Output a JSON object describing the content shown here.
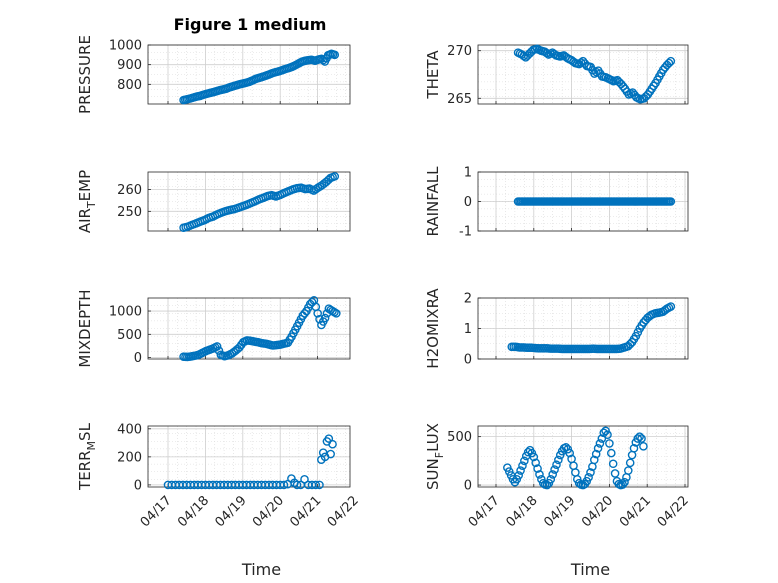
{
  "figure": {
    "title": "Figure 1 medium"
  },
  "colors": {
    "marker": "#0072BD",
    "axis": "#262626",
    "grid": "#d9d9d9",
    "background": "#ffffff"
  },
  "xaxis": {
    "label": "Time",
    "ticks": [
      "04/17",
      "04/18",
      "04/19",
      "04/20",
      "04/21",
      "04/22"
    ],
    "range_days": [
      0,
      5
    ]
  },
  "chart_data": [
    {
      "id": "pressure",
      "type": "scatter",
      "title": "Figure 1 medium",
      "ylabel": "PRESSURE",
      "ylabel_sub": "",
      "ylabel_suffix": "",
      "ylim": [
        700,
        1000
      ],
      "yticks": [
        800,
        900,
        1000
      ],
      "grid": true,
      "x_start": "2019-04-17 10:00",
      "x_end": "2019-04-21 11:00",
      "values": [
        720,
        724,
        728,
        733,
        738,
        741,
        747,
        752,
        756,
        760,
        765,
        770,
        774,
        778,
        785,
        790,
        795,
        800,
        804,
        808,
        813,
        820,
        828,
        833,
        838,
        844,
        850,
        857,
        862,
        866,
        872,
        878,
        883,
        889,
        897,
        906,
        915,
        920,
        923,
        925,
        920,
        926,
        930,
        916,
        948,
        955,
        950
      ]
    },
    {
      "id": "theta",
      "type": "scatter",
      "ylabel": "THETA",
      "ylabel_sub": "",
      "ylabel_suffix": "",
      "ylim": [
        264.4,
        270.6
      ],
      "yticks": [
        265,
        270
      ],
      "grid": true,
      "x_start": "2019-04-17 14:00",
      "x_end": "2019-04-21 15:00",
      "values": [
        269.8,
        269.6,
        269.3,
        269.7,
        270.1,
        270.2,
        270.0,
        269.9,
        269.6,
        269.8,
        269.5,
        269.4,
        269.5,
        269.2,
        269.0,
        268.7,
        268.6,
        268.9,
        268.4,
        268.3,
        267.6,
        267.9,
        267.3,
        267.2,
        267.0,
        266.8,
        266.9,
        266.5,
        266.0,
        265.4,
        265.6,
        265.1,
        264.9,
        265.0,
        265.4,
        266.0,
        266.6,
        267.3,
        268.0,
        268.5,
        268.9
      ]
    },
    {
      "id": "air_temp",
      "type": "scatter",
      "ylabel": "AIR",
      "ylabel_sub": "T",
      "ylabel_suffix": "EMP",
      "ylim": [
        241,
        268
      ],
      "yticks": [
        250,
        260
      ],
      "grid": true,
      "x_start": "2019-04-17 10:00",
      "x_end": "2019-04-21 11:00",
      "values": [
        242.5,
        243.0,
        243.8,
        244.5,
        245.3,
        246.0,
        247.0,
        247.6,
        248.6,
        249.4,
        250.1,
        250.6,
        251.0,
        251.6,
        252.3,
        253.0,
        253.8,
        254.6,
        255.5,
        256.2,
        257.0,
        257.4,
        256.8,
        257.5,
        258.4,
        259.2,
        260.0,
        260.6,
        260.8,
        260.2,
        260.4,
        259.5,
        260.8,
        262.0,
        263.5,
        265.3,
        266.0
      ]
    },
    {
      "id": "rainfall",
      "type": "scatter",
      "ylabel": "RAINFALL",
      "ylabel_sub": "",
      "ylabel_suffix": "",
      "ylim": [
        -1,
        1
      ],
      "yticks": [
        -1,
        0,
        1
      ],
      "grid": true,
      "x_start": "2019-04-17 14:00",
      "x_end": "2019-04-21 15:00",
      "values": [
        0,
        0,
        0,
        0,
        0,
        0,
        0,
        0,
        0,
        0,
        0,
        0,
        0,
        0,
        0,
        0,
        0,
        0,
        0,
        0,
        0,
        0,
        0,
        0,
        0,
        0,
        0,
        0,
        0,
        0,
        0,
        0,
        0,
        0,
        0,
        0,
        0,
        0,
        0,
        0,
        0,
        0,
        0,
        0,
        0,
        0,
        0,
        0,
        0,
        0
      ]
    },
    {
      "id": "mixdepth",
      "type": "scatter",
      "ylabel": "MIXDEPTH",
      "ylabel_sub": "",
      "ylabel_suffix": "",
      "ylim": [
        -30,
        1280
      ],
      "yticks": [
        0,
        500,
        1000
      ],
      "grid": true,
      "x_start": "2019-04-17 10:00",
      "x_end": "2019-04-21 12:00",
      "values": [
        20,
        15,
        25,
        40,
        60,
        100,
        140,
        170,
        200,
        240,
        60,
        30,
        50,
        90,
        150,
        220,
        330,
        370,
        360,
        345,
        330,
        310,
        300,
        280,
        260,
        270,
        280,
        300,
        320,
        450,
        600,
        750,
        900,
        1000,
        1150,
        1230,
        950,
        700,
        850,
        1050,
        1000,
        950
      ]
    },
    {
      "id": "h2omixra",
      "type": "scatter",
      "ylabel": "H2OMIXRA",
      "ylabel_sub": "",
      "ylabel_suffix": "",
      "ylim": [
        0,
        2
      ],
      "yticks": [
        0,
        1,
        2
      ],
      "grid": true,
      "x_start": "2019-04-17 10:00",
      "x_end": "2019-04-21 15:00",
      "values": [
        0.4,
        0.4,
        0.38,
        0.38,
        0.37,
        0.37,
        0.36,
        0.35,
        0.35,
        0.35,
        0.34,
        0.34,
        0.34,
        0.33,
        0.33,
        0.33,
        0.33,
        0.33,
        0.33,
        0.33,
        0.33,
        0.34,
        0.33,
        0.33,
        0.33,
        0.33,
        0.33,
        0.33,
        0.34,
        0.38,
        0.42,
        0.55,
        0.75,
        1.0,
        1.2,
        1.35,
        1.45,
        1.5,
        1.52,
        1.55,
        1.65,
        1.72
      ]
    },
    {
      "id": "terr_msl",
      "type": "scatter",
      "ylabel": "TERR",
      "ylabel_sub": "M",
      "ylabel_suffix": "SL",
      "ylim": [
        -15,
        420
      ],
      "yticks": [
        0,
        200,
        400
      ],
      "grid": true,
      "points": [
        {
          "day": 0.0,
          "y": 0
        },
        {
          "day": 0.1,
          "y": 0
        },
        {
          "day": 0.2,
          "y": 0
        },
        {
          "day": 0.3,
          "y": 0
        },
        {
          "day": 0.4,
          "y": 0
        },
        {
          "day": 0.5,
          "y": 0
        },
        {
          "day": 0.6,
          "y": 0
        },
        {
          "day": 0.7,
          "y": 0
        },
        {
          "day": 0.8,
          "y": 0
        },
        {
          "day": 0.9,
          "y": 0
        },
        {
          "day": 1.0,
          "y": 0
        },
        {
          "day": 1.1,
          "y": 0
        },
        {
          "day": 1.2,
          "y": 0
        },
        {
          "day": 1.3,
          "y": 0
        },
        {
          "day": 1.4,
          "y": 0
        },
        {
          "day": 1.5,
          "y": 0
        },
        {
          "day": 1.6,
          "y": 0
        },
        {
          "day": 1.7,
          "y": 0
        },
        {
          "day": 1.8,
          "y": 0
        },
        {
          "day": 1.9,
          "y": 0
        },
        {
          "day": 2.0,
          "y": 0
        },
        {
          "day": 2.1,
          "y": 0
        },
        {
          "day": 2.2,
          "y": 0
        },
        {
          "day": 2.3,
          "y": 0
        },
        {
          "day": 2.4,
          "y": 0
        },
        {
          "day": 2.5,
          "y": 0
        },
        {
          "day": 2.6,
          "y": 0
        },
        {
          "day": 2.7,
          "y": 0
        },
        {
          "day": 2.8,
          "y": 0
        },
        {
          "day": 2.9,
          "y": 0
        },
        {
          "day": 3.0,
          "y": 0
        },
        {
          "day": 3.1,
          "y": 0
        },
        {
          "day": 3.2,
          "y": 5
        },
        {
          "day": 3.3,
          "y": 45
        },
        {
          "day": 3.38,
          "y": 15
        },
        {
          "day": 3.45,
          "y": 0
        },
        {
          "day": 3.55,
          "y": 0
        },
        {
          "day": 3.65,
          "y": 40
        },
        {
          "day": 3.75,
          "y": 0
        },
        {
          "day": 3.85,
          "y": 0
        },
        {
          "day": 3.95,
          "y": 0
        },
        {
          "day": 4.05,
          "y": 0
        },
        {
          "day": 4.1,
          "y": 180
        },
        {
          "day": 4.15,
          "y": 230
        },
        {
          "day": 4.2,
          "y": 200
        },
        {
          "day": 4.25,
          "y": 310
        },
        {
          "day": 4.3,
          "y": 330
        },
        {
          "day": 4.35,
          "y": 220
        },
        {
          "day": 4.4,
          "y": 290
        }
      ]
    },
    {
      "id": "sun_flux",
      "type": "scatter",
      "ylabel": "SUN",
      "ylabel_sub": "F",
      "ylabel_suffix": "LUX",
      "ylim": [
        -20,
        610
      ],
      "yticks": [
        0,
        500
      ],
      "grid": true,
      "points": [
        {
          "day": 0.3,
          "y": 180
        },
        {
          "day": 0.35,
          "y": 140
        },
        {
          "day": 0.4,
          "y": 100
        },
        {
          "day": 0.45,
          "y": 60
        },
        {
          "day": 0.5,
          "y": 30
        },
        {
          "day": 0.55,
          "y": 60
        },
        {
          "day": 0.6,
          "y": 100
        },
        {
          "day": 0.65,
          "y": 150
        },
        {
          "day": 0.7,
          "y": 200
        },
        {
          "day": 0.75,
          "y": 250
        },
        {
          "day": 0.8,
          "y": 300
        },
        {
          "day": 0.85,
          "y": 340
        },
        {
          "day": 0.9,
          "y": 360
        },
        {
          "day": 0.95,
          "y": 330
        },
        {
          "day": 1.0,
          "y": 290
        },
        {
          "day": 1.05,
          "y": 230
        },
        {
          "day": 1.1,
          "y": 170
        },
        {
          "day": 1.15,
          "y": 110
        },
        {
          "day": 1.2,
          "y": 60
        },
        {
          "day": 1.25,
          "y": 20
        },
        {
          "day": 1.3,
          "y": 5
        },
        {
          "day": 1.35,
          "y": 0
        },
        {
          "day": 1.4,
          "y": 20
        },
        {
          "day": 1.45,
          "y": 60
        },
        {
          "day": 1.5,
          "y": 110
        },
        {
          "day": 1.55,
          "y": 160
        },
        {
          "day": 1.6,
          "y": 210
        },
        {
          "day": 1.65,
          "y": 260
        },
        {
          "day": 1.7,
          "y": 310
        },
        {
          "day": 1.75,
          "y": 350
        },
        {
          "day": 1.8,
          "y": 380
        },
        {
          "day": 1.85,
          "y": 390
        },
        {
          "day": 1.9,
          "y": 370
        },
        {
          "day": 1.95,
          "y": 330
        },
        {
          "day": 2.0,
          "y": 270
        },
        {
          "day": 2.05,
          "y": 200
        },
        {
          "day": 2.1,
          "y": 130
        },
        {
          "day": 2.15,
          "y": 60
        },
        {
          "day": 2.2,
          "y": 20
        },
        {
          "day": 2.25,
          "y": 5
        },
        {
          "day": 2.3,
          "y": 0
        },
        {
          "day": 2.35,
          "y": 10
        },
        {
          "day": 2.4,
          "y": 40
        },
        {
          "day": 2.45,
          "y": 80
        },
        {
          "day": 2.5,
          "y": 130
        },
        {
          "day": 2.55,
          "y": 190
        },
        {
          "day": 2.6,
          "y": 260
        },
        {
          "day": 2.65,
          "y": 320
        },
        {
          "day": 2.7,
          "y": 380
        },
        {
          "day": 2.75,
          "y": 430
        },
        {
          "day": 2.8,
          "y": 480
        },
        {
          "day": 2.85,
          "y": 540
        },
        {
          "day": 2.9,
          "y": 560
        },
        {
          "day": 2.95,
          "y": 520
        },
        {
          "day": 3.0,
          "y": 430
        },
        {
          "day": 3.05,
          "y": 330
        },
        {
          "day": 3.1,
          "y": 220
        },
        {
          "day": 3.15,
          "y": 120
        },
        {
          "day": 3.2,
          "y": 40
        },
        {
          "day": 3.25,
          "y": 10
        },
        {
          "day": 3.3,
          "y": 0
        },
        {
          "day": 3.35,
          "y": 5
        },
        {
          "day": 3.4,
          "y": 30
        },
        {
          "day": 3.45,
          "y": 80
        },
        {
          "day": 3.5,
          "y": 150
        },
        {
          "day": 3.55,
          "y": 230
        },
        {
          "day": 3.6,
          "y": 310
        },
        {
          "day": 3.65,
          "y": 380
        },
        {
          "day": 3.7,
          "y": 440
        },
        {
          "day": 3.75,
          "y": 480
        },
        {
          "day": 3.8,
          "y": 500
        },
        {
          "day": 3.85,
          "y": 480
        },
        {
          "day": 3.9,
          "y": 400
        }
      ]
    }
  ]
}
